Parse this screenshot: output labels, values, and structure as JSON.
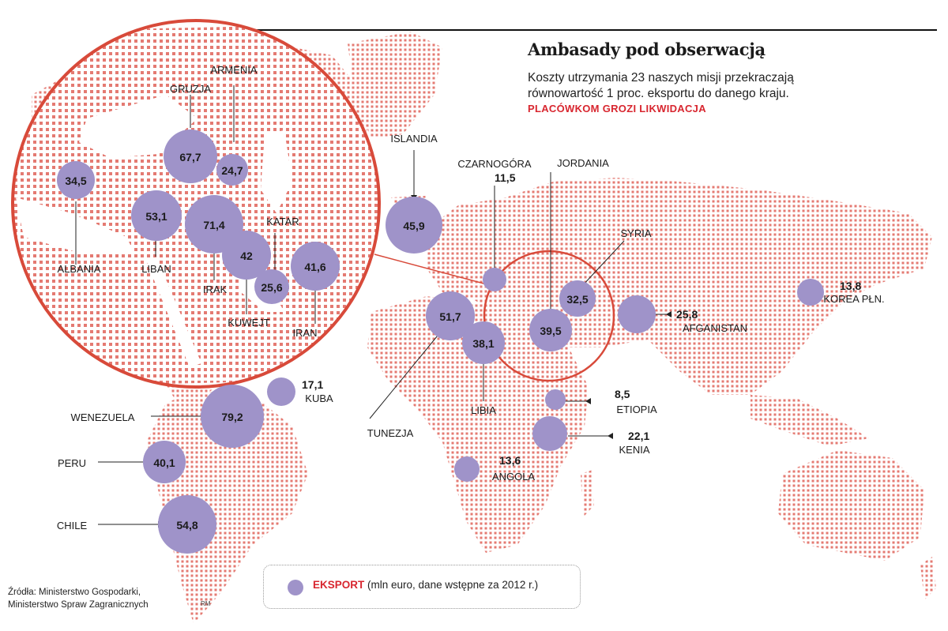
{
  "header": {
    "title": "Ambasady pod obserwacją",
    "subtitle_line1": "Koszty utrzymania 23 naszych misji przekraczają",
    "subtitle_line2": "równowartość 1 proc. eksportu do danego kraju.",
    "alert": "PLACÓWKOM GROZI LIKWIDACJA"
  },
  "source": {
    "line1": "Źródła: Ministerstwo Gospodarki,",
    "line2": "Ministerstwo Spraw Zagranicznych",
    "initials": "RM"
  },
  "legend": {
    "label": "EKSPORT",
    "note": "(mln euro, dane wstępne za 2012 r.)"
  },
  "colors": {
    "land_dots": "#e47a72",
    "bubble": "#9f93c9",
    "accent_red": "#d8262f"
  },
  "map_data": {
    "world": [
      {
        "name": "WENEZUELA",
        "value": "79,2"
      },
      {
        "name": "KUBA",
        "value": "17,1"
      },
      {
        "name": "PERU",
        "value": "40,1"
      },
      {
        "name": "CHILE",
        "value": "54,8"
      },
      {
        "name": "ISLANDIA",
        "value": "45,9"
      },
      {
        "name": "CZARNOGÓRA",
        "value": "11,5"
      },
      {
        "name": "TUNEZJA",
        "value": "51,7"
      },
      {
        "name": "LIBIA",
        "value": "38,1"
      },
      {
        "name": "JORDANIA",
        "value": "39,5"
      },
      {
        "name": "SYRIA",
        "value": "32,5"
      },
      {
        "name": "AFGANISTAN",
        "value": "25,8"
      },
      {
        "name": "KOREA PŁN.",
        "value": "13,8"
      },
      {
        "name": "ETIOPIA",
        "value": "8,5"
      },
      {
        "name": "KENIA",
        "value": "22,1"
      },
      {
        "name": "ANGOLA",
        "value": "13,6"
      }
    ],
    "inset": [
      {
        "name": "ALBANIA",
        "value": "34,5"
      },
      {
        "name": "GRUZJA",
        "value": "67,7"
      },
      {
        "name": "ARMENIA",
        "value": "24,7"
      },
      {
        "name": "LIBAN",
        "value": "53,1"
      },
      {
        "name": "IRAK",
        "value": "71,4"
      },
      {
        "name": "KUWEJT",
        "value": "42"
      },
      {
        "name": "KATAR",
        "value": "25,6"
      },
      {
        "name": "IRAN",
        "value": "41,6"
      }
    ]
  }
}
